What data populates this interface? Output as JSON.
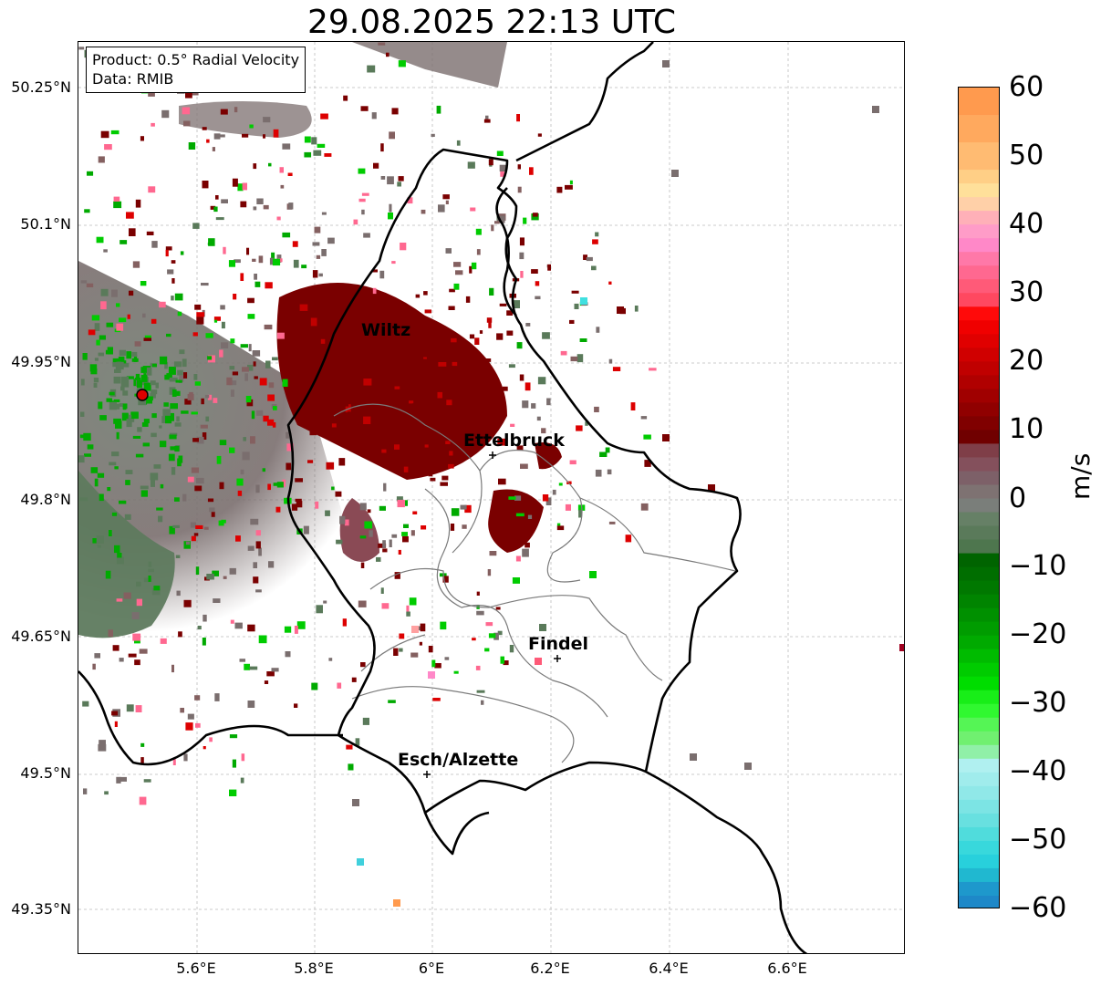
{
  "title": "29.08.2025 22:13 UTC",
  "info": {
    "product": "Product: 0.5° Radial Velocity",
    "data": "Data: RMIB"
  },
  "map": {
    "lat_ticks": [
      "50.25°N",
      "50.1°N",
      "49.95°N",
      "49.8°N",
      "49.65°N",
      "49.5°N",
      "49.35°N"
    ],
    "lon_ticks": [
      "5.6°E",
      "5.8°E",
      "6°E",
      "6.2°E",
      "6.4°E",
      "6.6°E"
    ],
    "cities": [
      {
        "name": "Wiltz"
      },
      {
        "name": "Ettelbruck"
      },
      {
        "name": "Findel"
      },
      {
        "name": "Esch/Alzette"
      }
    ],
    "radar_marker": "radar-site",
    "colors": {
      "inbound_green": "#00aa00",
      "outbound_red": "#7a0000",
      "near_zero": "#7a6e6e",
      "border": "#000000"
    }
  },
  "colorbar": {
    "unit": "m/s",
    "range": [
      -60,
      60
    ],
    "ticks": [
      "60",
      "50",
      "40",
      "30",
      "20",
      "10",
      "0",
      "−10",
      "−20",
      "−30",
      "−40",
      "−50",
      "−60"
    ]
  }
}
